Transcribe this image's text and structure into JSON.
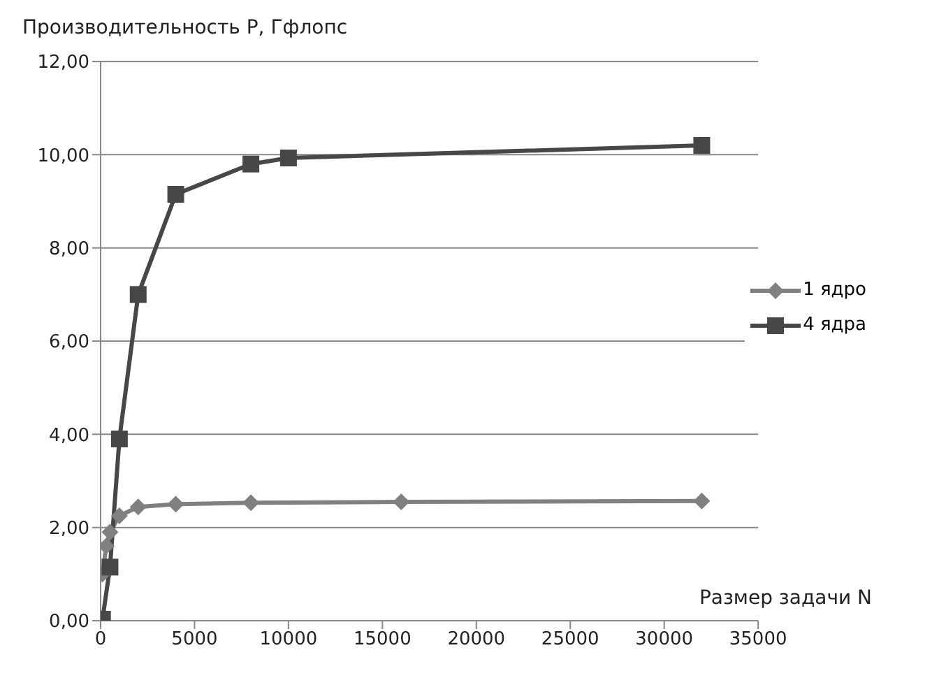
{
  "chart_data": {
    "type": "line",
    "ylabel": "Производительность P, Гфлопс",
    "xlabel": "Размер задачи N",
    "xlim": [
      0,
      35000
    ],
    "xticks": [
      0,
      5000,
      10000,
      15000,
      20000,
      25000,
      30000,
      35000
    ],
    "ylim": [
      0,
      12
    ],
    "yticks": [
      {
        "value": 0,
        "label": "0,00"
      },
      {
        "value": 2,
        "label": "2,00"
      },
      {
        "value": 4,
        "label": "4,00"
      },
      {
        "value": 6,
        "label": "6,00"
      },
      {
        "value": 8,
        "label": "8,00"
      },
      {
        "value": 10,
        "label": "10,00"
      },
      {
        "value": 12,
        "label": "12,00"
      }
    ],
    "grid": "y",
    "legend": "right",
    "line_style": "solid",
    "series": [
      {
        "name": "1 ядро",
        "color": "#808080",
        "marker": "diamond",
        "x": [
          100,
          300,
          500,
          1000,
          2000,
          4000,
          8000,
          16000,
          32000
        ],
        "values": [
          1.0,
          1.6,
          1.9,
          2.25,
          2.44,
          2.5,
          2.53,
          2.55,
          2.57
        ]
      },
      {
        "name": "4 ядра",
        "color": "#474747",
        "marker": "square",
        "x": [
          100,
          500,
          1000,
          2000,
          4000,
          8000,
          10000,
          32000
        ],
        "values": [
          0.03,
          1.15,
          3.9,
          7.0,
          9.15,
          9.8,
          9.93,
          10.2
        ]
      }
    ]
  }
}
